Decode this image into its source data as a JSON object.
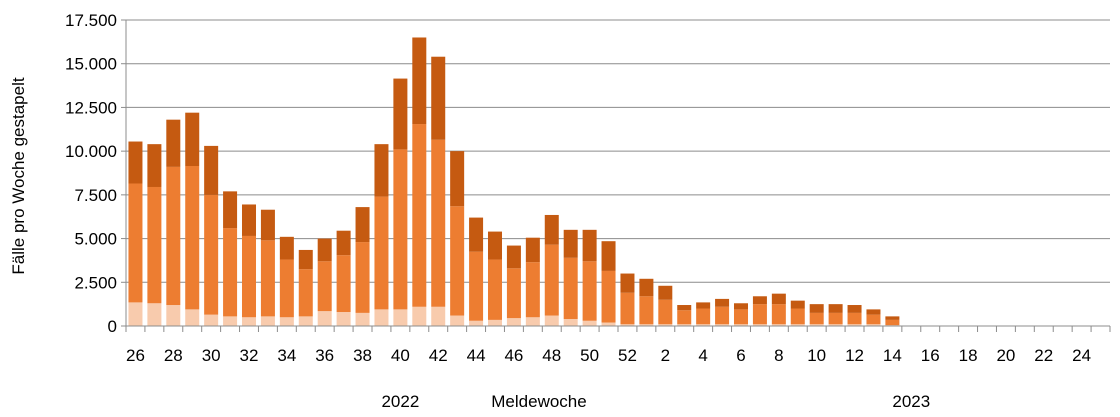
{
  "chart_data": {
    "type": "bar",
    "stacked": true,
    "ylabel": "Fälle pro Woche gestapelt",
    "xlabel": "Meldewoche",
    "year_labels": [
      {
        "text": "2022",
        "at_index": 14
      },
      {
        "text": "2023",
        "at_index": 41
      }
    ],
    "ylim": [
      0,
      17500
    ],
    "yticks": [
      0,
      2500,
      5000,
      7500,
      10000,
      12500,
      15000,
      17500
    ],
    "ytick_labels": [
      "0",
      "2.500",
      "5.000",
      "7.500",
      "10.000",
      "12.500",
      "15.000",
      "17.500"
    ],
    "grid": true,
    "categories": [
      26,
      27,
      28,
      29,
      30,
      31,
      32,
      33,
      34,
      35,
      36,
      37,
      38,
      39,
      40,
      41,
      42,
      43,
      44,
      45,
      46,
      47,
      48,
      49,
      50,
      51,
      52,
      1,
      2,
      3,
      4,
      5,
      6,
      7,
      8,
      9,
      10,
      11,
      12,
      13,
      14,
      15,
      16,
      17,
      18,
      19,
      20,
      21,
      22,
      23,
      24,
      25
    ],
    "xtick_labels": [
      "26",
      "",
      "28",
      "",
      "30",
      "",
      "32",
      "",
      "34",
      "",
      "36",
      "",
      "38",
      "",
      "40",
      "",
      "42",
      "",
      "44",
      "",
      "46",
      "",
      "48",
      "",
      "50",
      "",
      "52",
      "",
      "2",
      "",
      "4",
      "",
      "6",
      "",
      "8",
      "",
      "10",
      "",
      "12",
      "",
      "14",
      "",
      "16",
      "",
      "18",
      "",
      "20",
      "",
      "22",
      "",
      "24",
      ""
    ],
    "series": [
      {
        "color": "#f8cbad",
        "values": [
          1350,
          1300,
          1200,
          950,
          650,
          550,
          500,
          550,
          500,
          550,
          850,
          800,
          750,
          950,
          950,
          1100,
          1100,
          600,
          300,
          350,
          450,
          500,
          600,
          400,
          300,
          200,
          100,
          100,
          100,
          100,
          100,
          100,
          100,
          100,
          100,
          100,
          100,
          100,
          100,
          100,
          50,
          0,
          0,
          0,
          0,
          0,
          0,
          0,
          0,
          0,
          0,
          0
        ]
      },
      {
        "color": "#ed7d31",
        "values": [
          6800,
          6650,
          7900,
          8200,
          6850,
          5050,
          4650,
          4350,
          3300,
          2700,
          2850,
          3250,
          4050,
          6450,
          9150,
          10450,
          9550,
          6250,
          3950,
          3450,
          2850,
          3150,
          4050,
          3500,
          3400,
          2950,
          1800,
          1600,
          1400,
          800,
          900,
          1000,
          850,
          1150,
          1150,
          900,
          650,
          650,
          650,
          550,
          300,
          0,
          0,
          0,
          0,
          0,
          0,
          0,
          0,
          0,
          0,
          0
        ]
      },
      {
        "color": "#c55a11",
        "values": [
          2400,
          2450,
          2700,
          3050,
          2800,
          2100,
          1800,
          1750,
          1300,
          1100,
          1300,
          1400,
          2000,
          3000,
          4050,
          4950,
          4750,
          3150,
          1950,
          1600,
          1300,
          1400,
          1700,
          1600,
          1800,
          1700,
          1100,
          1000,
          800,
          300,
          350,
          450,
          350,
          450,
          600,
          450,
          500,
          500,
          450,
          300,
          200,
          0,
          0,
          0,
          0,
          0,
          0,
          0,
          0,
          0,
          0,
          0
        ]
      }
    ]
  }
}
